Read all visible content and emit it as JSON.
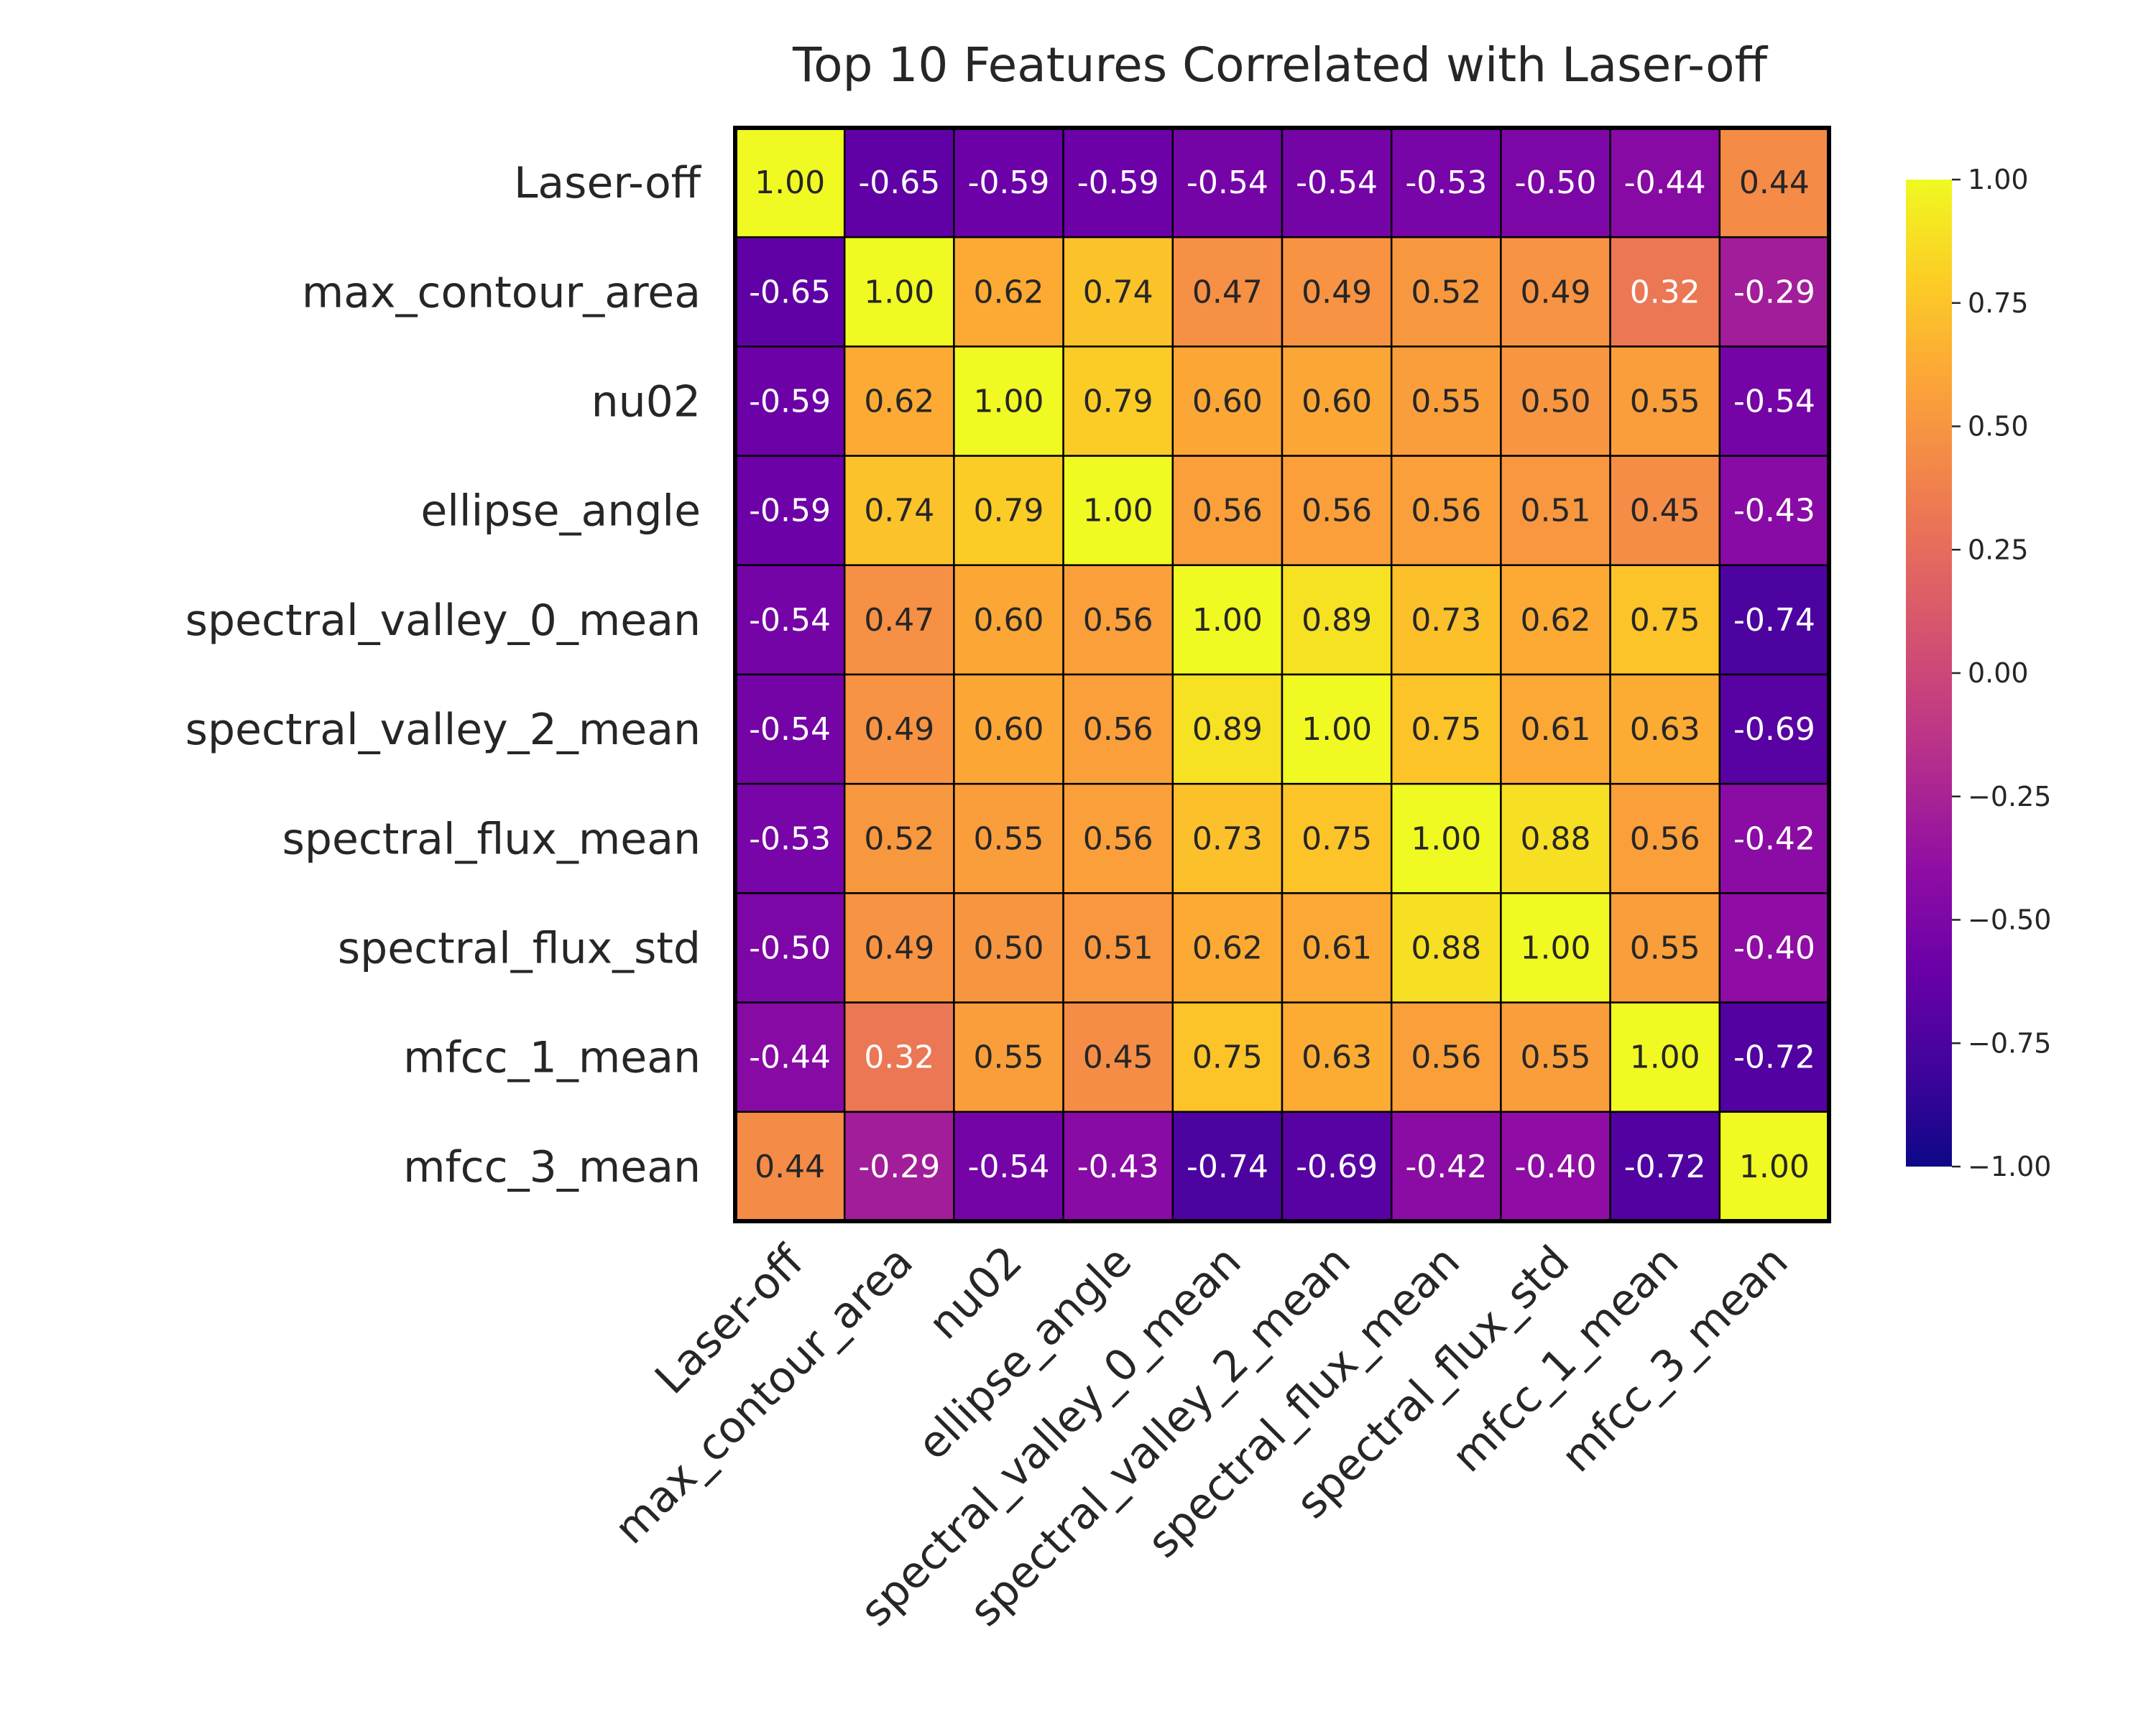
{
  "chart_data": {
    "type": "heatmap",
    "title": "Top 10 Features Correlated with Laser-off",
    "labels": [
      "Laser-off",
      "max_contour_area",
      "nu02",
      "ellipse_angle",
      "spectral_valley_0_mean",
      "spectral_valley_2_mean",
      "spectral_flux_mean",
      "spectral_flux_std",
      "mfcc_1_mean",
      "mfcc_3_mean"
    ],
    "matrix": [
      [
        1.0,
        -0.65,
        -0.59,
        -0.59,
        -0.54,
        -0.54,
        -0.53,
        -0.5,
        -0.44,
        0.44
      ],
      [
        -0.65,
        1.0,
        0.62,
        0.74,
        0.47,
        0.49,
        0.52,
        0.49,
        0.32,
        -0.29
      ],
      [
        -0.59,
        0.62,
        1.0,
        0.79,
        0.6,
        0.6,
        0.55,
        0.5,
        0.55,
        -0.54
      ],
      [
        -0.59,
        0.74,
        0.79,
        1.0,
        0.56,
        0.56,
        0.56,
        0.51,
        0.45,
        -0.43
      ],
      [
        -0.54,
        0.47,
        0.6,
        0.56,
        1.0,
        0.89,
        0.73,
        0.62,
        0.75,
        -0.74
      ],
      [
        -0.54,
        0.49,
        0.6,
        0.56,
        0.89,
        1.0,
        0.75,
        0.61,
        0.63,
        -0.69
      ],
      [
        -0.53,
        0.52,
        0.55,
        0.56,
        0.73,
        0.75,
        1.0,
        0.88,
        0.56,
        -0.42
      ],
      [
        -0.5,
        0.49,
        0.5,
        0.51,
        0.62,
        0.61,
        0.88,
        1.0,
        0.55,
        -0.4
      ],
      [
        -0.44,
        0.32,
        0.55,
        0.45,
        0.75,
        0.63,
        0.56,
        0.55,
        1.0,
        -0.72
      ],
      [
        0.44,
        -0.29,
        -0.54,
        -0.43,
        -0.74,
        -0.69,
        -0.42,
        -0.4,
        -0.72,
        1.0
      ]
    ],
    "value_format": "0.00",
    "colormap": "plasma",
    "vmin": -1.0,
    "vmax": 1.0,
    "colorbar": {
      "ticks": [
        1.0,
        0.75,
        0.5,
        0.25,
        0.0,
        -0.25,
        -0.5,
        -0.75,
        -1.0
      ],
      "tick_labels": [
        "1.00",
        "0.75",
        "0.50",
        "0.25",
        "0.00",
        "−0.25",
        "−0.50",
        "−0.75",
        "−1.00"
      ]
    },
    "grid": true,
    "cell_border_color": "#000000",
    "annotation_colors": {
      "dark": "#262626",
      "light": "#ffffff"
    }
  }
}
